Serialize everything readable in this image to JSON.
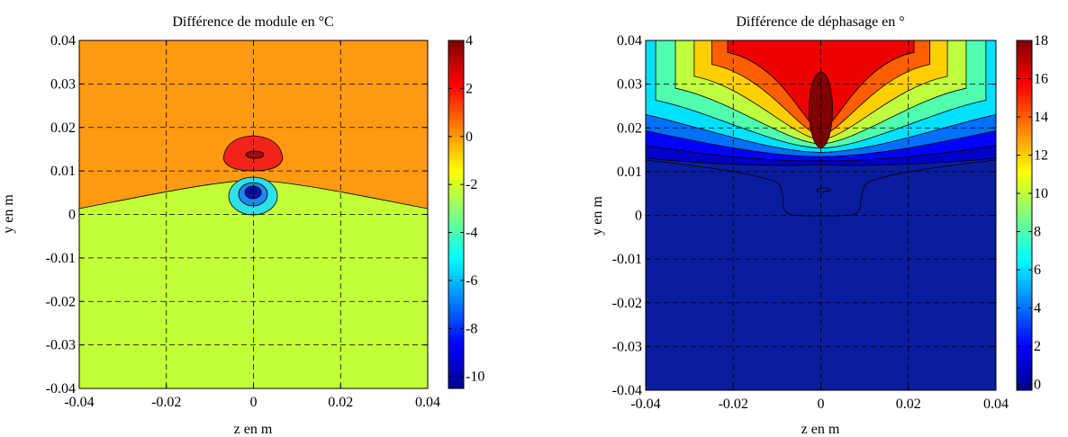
{
  "chart_data": [
    {
      "type": "contour",
      "title": "Différence de module en °C",
      "xlabel": "z en m",
      "ylabel": "y en m",
      "xlim": [
        -0.04,
        0.04
      ],
      "ylim": [
        -0.04,
        0.04
      ],
      "x_ticks": [
        "-0.04",
        "-0.02",
        "0",
        "0.02",
        "0.04"
      ],
      "y_ticks": [
        "-0.04",
        "-0.03",
        "-0.02",
        "-0.01",
        "0",
        "0.01",
        "0.02",
        "0.03",
        "0.04"
      ],
      "grid": true,
      "colorbar": {
        "range": [
          -10.5,
          4
        ],
        "ticks": [
          "-10",
          "-8",
          "-6",
          "-4",
          "-2",
          "0",
          "2",
          "4"
        ]
      },
      "regions": [
        {
          "level": "upper plateau",
          "value": 1.0,
          "color": "#FF9A12"
        },
        {
          "level": "lower plateau",
          "value": -1.0,
          "color": "#C3FF36"
        },
        {
          "level": "hot spot",
          "value": 2.5,
          "color": "#F2241A"
        },
        {
          "level": "hot core",
          "value": 3.5,
          "color": "#A30A0A"
        },
        {
          "level": "cold ring",
          "value": -6.0,
          "color": "#2FE1E6"
        },
        {
          "level": "cold mid",
          "value": -8.0,
          "color": "#1F86F0"
        },
        {
          "level": "cold core",
          "value": -10.0,
          "color": "#0A14B0"
        }
      ],
      "features": {
        "boundary_y_at_edges": 0.0015,
        "boundary_y_at_center": 0.0085,
        "hot_spot_center": [
          0.0,
          0.0135
        ],
        "cold_spot_center": [
          0.0,
          0.0055
        ]
      }
    },
    {
      "type": "contour",
      "title": "Différence de déphasage en °",
      "xlabel": "z en m",
      "ylabel": "y en m",
      "xlim": [
        -0.04,
        0.04
      ],
      "ylim": [
        -0.04,
        0.04
      ],
      "x_ticks": [
        "-0.04",
        "-0.02",
        "0",
        "0.02",
        "0.04"
      ],
      "y_ticks": [
        "-0.04",
        "-0.03",
        "-0.02",
        "-0.01",
        "0",
        "0.01",
        "0.02",
        "0.03",
        "0.04"
      ],
      "grid": true,
      "colorbar": {
        "range": [
          -0.3,
          18
        ],
        "ticks": [
          "0",
          "2",
          "4",
          "6",
          "8",
          "10",
          "12",
          "14",
          "16",
          "18"
        ]
      },
      "features": {
        "max_value": 18,
        "max_location": [
          0.0,
          0.025
        ],
        "fan_levels": [
          1,
          2,
          4,
          6,
          8,
          10,
          12,
          14,
          16
        ],
        "baseline_contour_y": 0.012,
        "notch_y": -0.0003,
        "notch_half_width": 0.0085
      }
    }
  ]
}
